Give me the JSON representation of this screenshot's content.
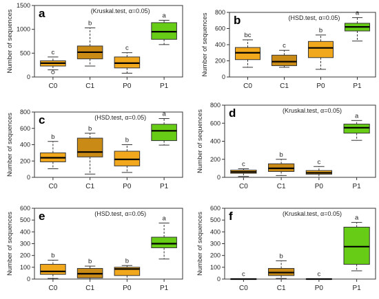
{
  "colors": {
    "C0": "#f2a81d",
    "C1": "#c98a16",
    "P0": "#f2a81d",
    "P1": "#66cc16",
    "median": "#000000",
    "whisker": "#333333",
    "frame": "#333333"
  },
  "chart_data": [
    {
      "type": "boxplot",
      "panel": "a",
      "test_label": "(Kruskal.test, α=0.05)",
      "ylabel": "Number of sequences",
      "categories": [
        "C0",
        "C1",
        "P0",
        "P1"
      ],
      "ylim": [
        0,
        1500
      ],
      "yticks": [
        0,
        500,
        1000,
        1500
      ],
      "groups": [
        {
          "name": "C0",
          "min": 150,
          "q1": 230,
          "median": 290,
          "q3": 340,
          "max": 420,
          "letter": "c",
          "outliers": [
            100
          ]
        },
        {
          "name": "C1",
          "min": 230,
          "q1": 380,
          "median": 520,
          "q3": 650,
          "max": 1030,
          "letter": "b",
          "outliers": []
        },
        {
          "name": "P0",
          "min": 80,
          "q1": 190,
          "median": 290,
          "q3": 420,
          "max": 510,
          "letter": "c",
          "outliers": []
        },
        {
          "name": "P1",
          "min": 680,
          "q1": 790,
          "median": 950,
          "q3": 1140,
          "max": 1190,
          "letter": "a",
          "outliers": []
        }
      ]
    },
    {
      "type": "boxplot",
      "panel": "b",
      "test_label": "(HSD.test, α=0.05)",
      "ylabel": "Number of sequences",
      "categories": [
        "C0",
        "C1",
        "P0",
        "P1"
      ],
      "ylim": [
        0,
        800
      ],
      "yticks": [
        0,
        200,
        400,
        600,
        800
      ],
      "groups": [
        {
          "name": "C0",
          "min": 120,
          "q1": 215,
          "median": 300,
          "q3": 365,
          "max": 460,
          "letter": "bc",
          "outliers": []
        },
        {
          "name": "C1",
          "min": 120,
          "q1": 140,
          "median": 190,
          "q3": 270,
          "max": 330,
          "letter": "c",
          "outliers": []
        },
        {
          "name": "P0",
          "min": 95,
          "q1": 240,
          "median": 360,
          "q3": 440,
          "max": 520,
          "letter": "b",
          "outliers": []
        },
        {
          "name": "P1",
          "min": 445,
          "q1": 570,
          "median": 620,
          "q3": 665,
          "max": 735,
          "letter": "a",
          "outliers": []
        }
      ]
    },
    {
      "type": "boxplot",
      "panel": "c",
      "test_label": "(HSD.test, α=0.05)",
      "ylabel": "Number of sequences",
      "categories": [
        "C0",
        "C1",
        "P0",
        "P1"
      ],
      "ylim": [
        0,
        800
      ],
      "yticks": [
        0,
        200,
        400,
        600,
        800
      ],
      "groups": [
        {
          "name": "C0",
          "min": 105,
          "q1": 190,
          "median": 240,
          "q3": 300,
          "max": 440,
          "letter": "b",
          "outliers": []
        },
        {
          "name": "C1",
          "min": 40,
          "q1": 250,
          "median": 310,
          "q3": 480,
          "max": 540,
          "letter": "b",
          "outliers": []
        },
        {
          "name": "P0",
          "min": 60,
          "q1": 140,
          "median": 220,
          "q3": 320,
          "max": 400,
          "letter": "b",
          "outliers": []
        },
        {
          "name": "P1",
          "min": 395,
          "q1": 450,
          "median": 570,
          "q3": 650,
          "max": 720,
          "letter": "a",
          "outliers": []
        }
      ]
    },
    {
      "type": "boxplot",
      "panel": "d",
      "test_label": "(Kruskal.test, α=0.05)",
      "ylabel": "Number of sequences",
      "categories": [
        "C0",
        "C1",
        "P0",
        "P1"
      ],
      "ylim": [
        0,
        800
      ],
      "yticks": [
        0,
        200,
        400,
        600,
        800
      ],
      "groups": [
        {
          "name": "C0",
          "min": 10,
          "q1": 45,
          "median": 60,
          "q3": 80,
          "max": 95,
          "letter": "c",
          "outliers": []
        },
        {
          "name": "C1",
          "min": 20,
          "q1": 65,
          "median": 100,
          "q3": 150,
          "max": 200,
          "letter": "b",
          "outliers": []
        },
        {
          "name": "P0",
          "min": 0,
          "q1": 35,
          "median": 50,
          "q3": 75,
          "max": 120,
          "letter": "c",
          "outliers": []
        },
        {
          "name": "P1",
          "min": 410,
          "q1": 490,
          "median": 550,
          "q3": 590,
          "max": 630,
          "letter": "a",
          "outliers": []
        }
      ]
    },
    {
      "type": "boxplot",
      "panel": "e",
      "test_label": "(HSD.test, α=0.05)",
      "ylabel": "Number of sequences",
      "categories": [
        "C0",
        "C1",
        "P0",
        "P1"
      ],
      "ylim": [
        0,
        600
      ],
      "yticks": [
        0,
        100,
        200,
        300,
        400,
        500,
        600
      ],
      "groups": [
        {
          "name": "C0",
          "min": 5,
          "q1": 40,
          "median": 65,
          "q3": 125,
          "max": 160,
          "letter": "b",
          "outliers": []
        },
        {
          "name": "C1",
          "min": 0,
          "q1": 10,
          "median": 45,
          "q3": 90,
          "max": 110,
          "letter": "b",
          "outliers": []
        },
        {
          "name": "P0",
          "min": 0,
          "q1": 30,
          "median": 85,
          "q3": 100,
          "max": 115,
          "letter": "b",
          "outliers": []
        },
        {
          "name": "P1",
          "min": 170,
          "q1": 265,
          "median": 300,
          "q3": 355,
          "max": 475,
          "letter": "a",
          "outliers": []
        }
      ]
    },
    {
      "type": "boxplot",
      "panel": "f",
      "test_label": "(Kruskal.test, α=0.05)",
      "ylabel": "Number of sequences",
      "categories": [
        "C0",
        "C1",
        "P0",
        "P1"
      ],
      "ylim": [
        0,
        600
      ],
      "yticks": [
        0,
        100,
        200,
        300,
        400,
        500,
        600
      ],
      "groups": [
        {
          "name": "C0",
          "min": 0,
          "q1": 0,
          "median": 0,
          "q3": 3,
          "max": 3,
          "letter": "c",
          "outliers": []
        },
        {
          "name": "C1",
          "min": 5,
          "q1": 30,
          "median": 55,
          "q3": 90,
          "max": 155,
          "letter": "b",
          "outliers": []
        },
        {
          "name": "P0",
          "min": 0,
          "q1": 0,
          "median": 0,
          "q3": 3,
          "max": 3,
          "letter": "c",
          "outliers": []
        },
        {
          "name": "P1",
          "min": 70,
          "q1": 125,
          "median": 275,
          "q3": 440,
          "max": 480,
          "letter": "a",
          "outliers": []
        }
      ]
    }
  ]
}
